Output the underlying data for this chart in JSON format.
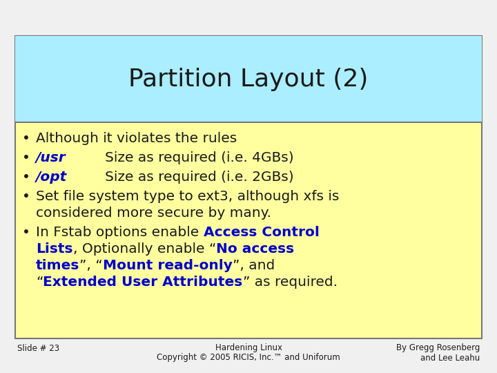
{
  "title": "Partition Layout (2)",
  "title_bg": "#aaeeff",
  "content_bg": "#ffffa0",
  "outer_bg": "#f0f0f0",
  "border_color": "#777777",
  "title_fontsize": 26,
  "content_fontsize": 14.5,
  "footer_fontsize": 8.5,
  "slide_number": "Slide # 23",
  "footer_center_line1": "Hardening Linux",
  "footer_center_line2": "Copyright © 2005 RICIS, Inc.™ and Uniforum",
  "footer_right_line1": "By Gregg Rosenberg",
  "footer_right_line2": "and Lee Leahu",
  "black": "#1a1a1a",
  "blue": "#0000cc"
}
